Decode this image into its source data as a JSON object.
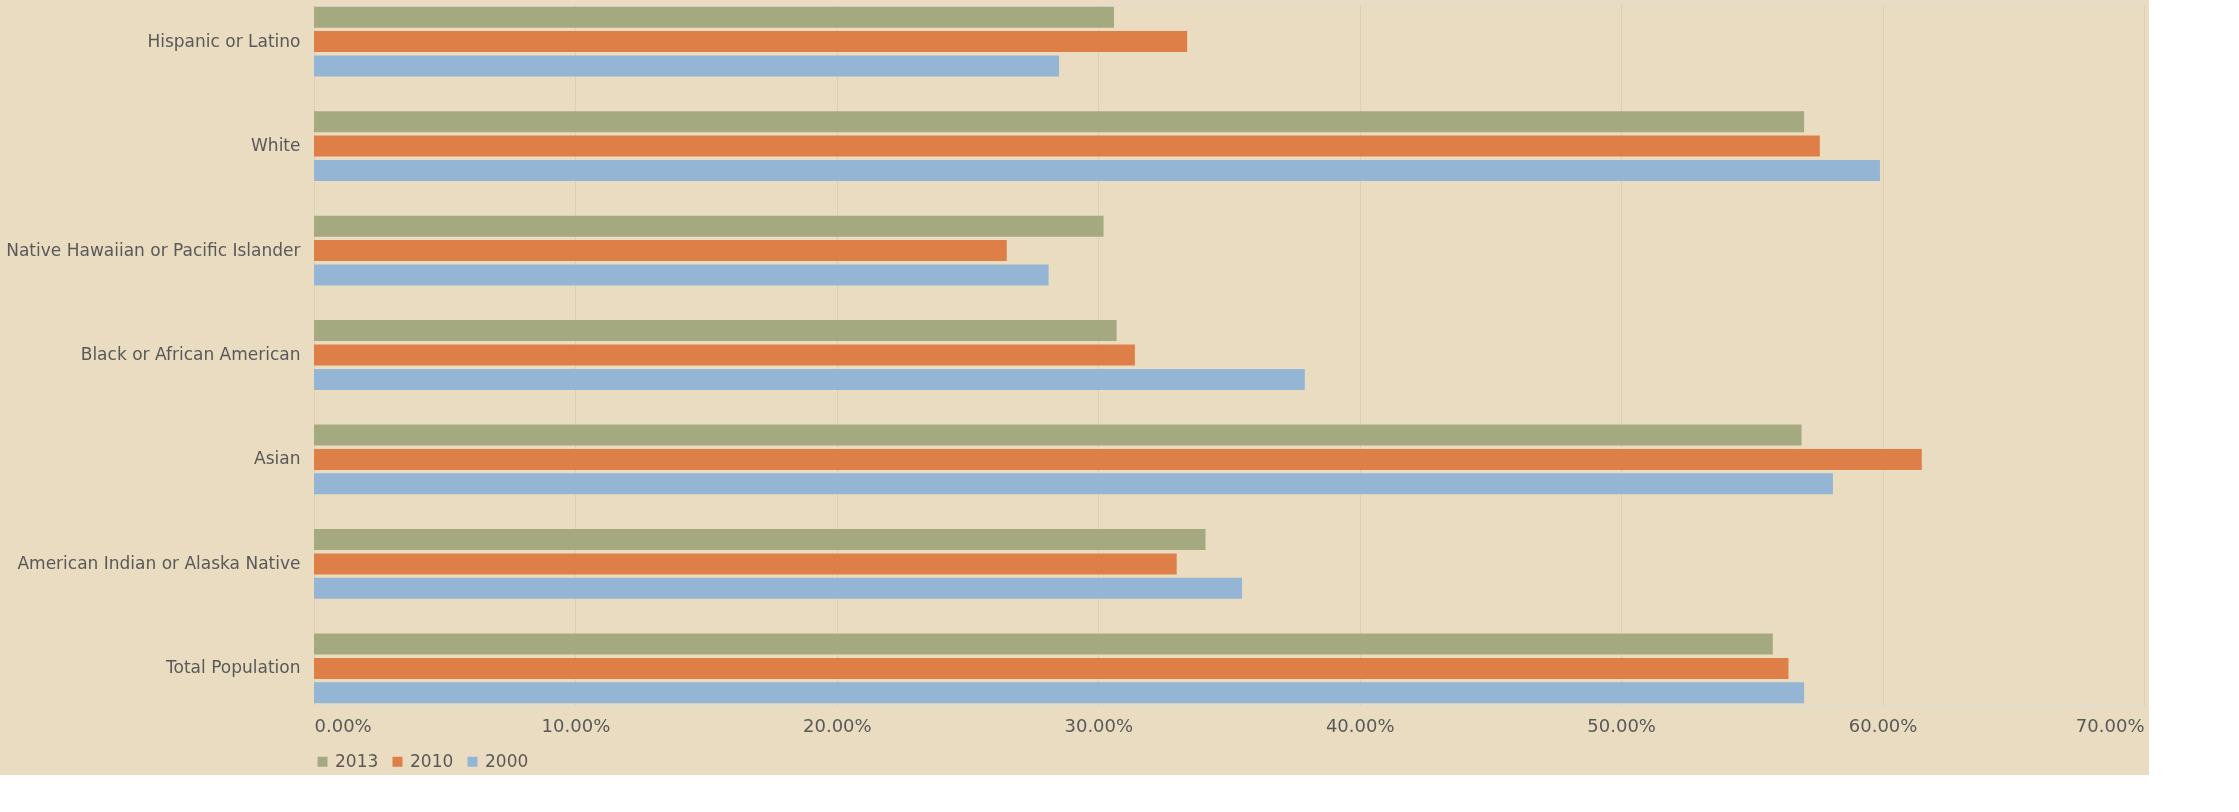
{
  "chart_data": {
    "type": "bar",
    "orientation": "horizontal",
    "categories": [
      "Hispanic or Latino",
      "White",
      "Native Hawaiian or Pacific Islander",
      "Black or African American",
      "Asian",
      "American Indian or Alaska Native",
      "Total Population"
    ],
    "series": [
      {
        "name": "2013",
        "color": "#a5a97f",
        "values": [
          30.6,
          57.0,
          30.2,
          30.7,
          56.9,
          34.1,
          55.8
        ]
      },
      {
        "name": "2010",
        "color": "#de7f48",
        "values": [
          33.4,
          57.6,
          26.5,
          31.4,
          61.5,
          33.0,
          56.4
        ]
      },
      {
        "name": "2000",
        "color": "#95b5d4",
        "values": [
          28.5,
          59.9,
          28.1,
          37.9,
          58.1,
          35.5,
          57.0
        ]
      }
    ],
    "xlim": [
      0,
      70
    ],
    "xticks": [
      {
        "value": 0,
        "label": "0.00%"
      },
      {
        "value": 10,
        "label": "10.00%"
      },
      {
        "value": 20,
        "label": "20.00%"
      },
      {
        "value": 30,
        "label": "30.00%"
      },
      {
        "value": 40,
        "label": "40.00%"
      },
      {
        "value": 50,
        "label": "50.00%"
      },
      {
        "value": 60,
        "label": "60.00%"
      },
      {
        "value": 70,
        "label": "70.00%"
      }
    ],
    "grid": "x",
    "legend": "bottom"
  }
}
